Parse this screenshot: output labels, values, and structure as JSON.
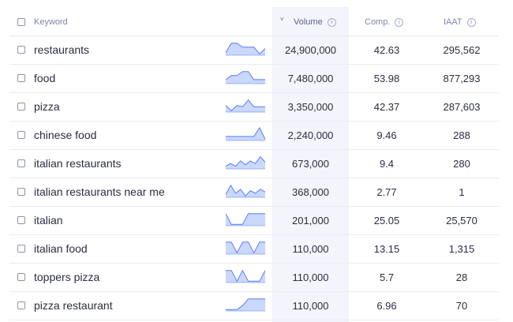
{
  "columns": {
    "keyword": "Keyword",
    "volume": "Volume",
    "comp": "Comp.",
    "iaat": "IAAT",
    "info_symbol": "i",
    "sort_symbol": "˅"
  },
  "accent_color": "#5b7cfa",
  "sparkline_fill": "#c9d8fb",
  "rows": [
    {
      "keyword": "restaurants",
      "volume": "24,900,000",
      "comp": "42.63",
      "iaat": "295,562",
      "trend": [
        0.2,
        0.9,
        0.9,
        0.6,
        0.6,
        0.6,
        0.1,
        0.5
      ]
    },
    {
      "keyword": "food",
      "volume": "7,480,000",
      "comp": "53.98",
      "iaat": "877,293",
      "trend": [
        0.3,
        0.6,
        0.6,
        0.9,
        0.9,
        0.3,
        0.3,
        0.3
      ]
    },
    {
      "keyword": "pizza",
      "volume": "3,350,000",
      "comp": "42.37",
      "iaat": "287,603",
      "trend": [
        0.5,
        0.1,
        0.5,
        0.4,
        0.9,
        0.4,
        0.4,
        0.4
      ]
    },
    {
      "keyword": "chinese food",
      "volume": "2,240,000",
      "comp": "9.46",
      "iaat": "288",
      "trend": [
        0.3,
        0.3,
        0.3,
        0.3,
        0.3,
        0.3,
        0.95,
        0.1
      ]
    },
    {
      "keyword": "italian restaurants",
      "volume": "673,000",
      "comp": "9.4",
      "iaat": "280",
      "trend": [
        0.2,
        0.4,
        0.2,
        0.6,
        0.3,
        0.6,
        0.4,
        0.9,
        0.5
      ]
    },
    {
      "keyword": "italian restaurants near me",
      "volume": "368,000",
      "comp": "2.77",
      "iaat": "1",
      "trend": [
        0.2,
        0.9,
        0.3,
        0.6,
        0.1,
        0.5,
        0.3,
        0.6,
        0.4
      ]
    },
    {
      "keyword": "italian",
      "volume": "201,000",
      "comp": "25.05",
      "iaat": "25,570",
      "trend": [
        0.9,
        0.1,
        0.1,
        0.1,
        0.9,
        0.9,
        0.9,
        0.9
      ]
    },
    {
      "keyword": "italian food",
      "volume": "110,000",
      "comp": "13.15",
      "iaat": "1,315",
      "trend": [
        0.9,
        0.9,
        0.1,
        0.9,
        0.9,
        0.1,
        0.9,
        0.9
      ]
    },
    {
      "keyword": "toppers pizza",
      "volume": "110,000",
      "comp": "5.7",
      "iaat": "28",
      "trend": [
        0.9,
        0.9,
        0.1,
        0.9,
        0.1,
        0.1,
        0.1,
        0.9
      ]
    },
    {
      "keyword": "pizza restaurant",
      "volume": "110,000",
      "comp": "6.96",
      "iaat": "70",
      "trend": [
        0.1,
        0.1,
        0.1,
        0.4,
        0.9,
        0.9,
        0.9,
        0.9
      ]
    }
  ]
}
